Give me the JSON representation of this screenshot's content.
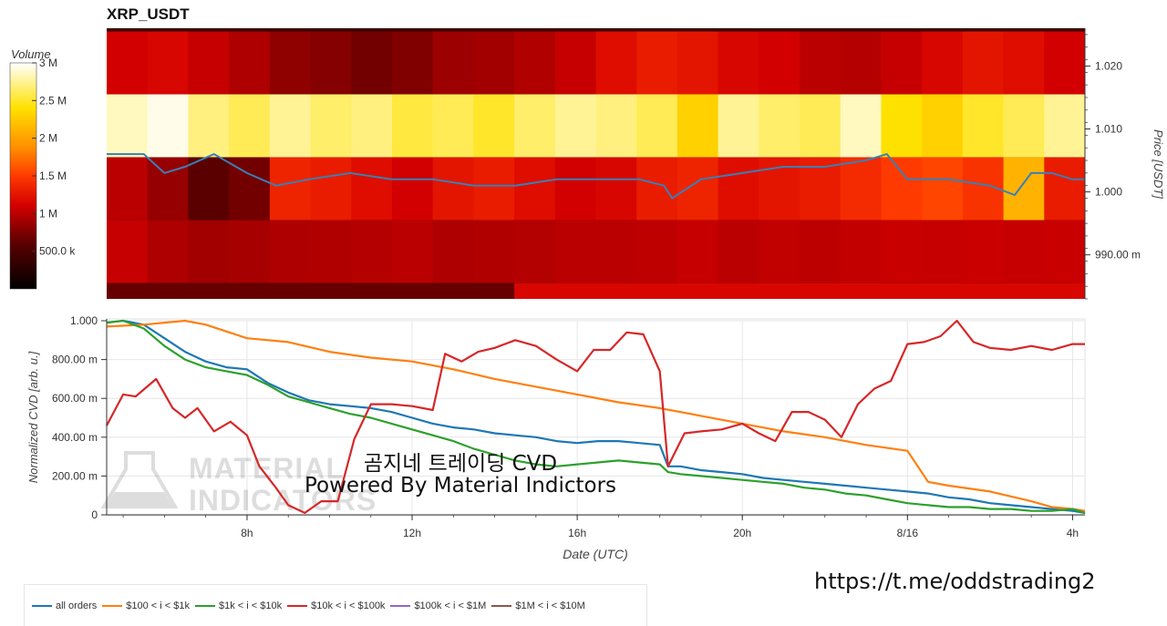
{
  "title": "XRP_USDT",
  "colorbar": {
    "label": "Volume",
    "ticks": [
      "3 M",
      "2.5 M",
      "2 M",
      "1.5 M",
      "1 M",
      "500.0 k"
    ]
  },
  "price_axis": {
    "label": "Price [USDT]",
    "ticks": [
      "1.020",
      "1.010",
      "1.000",
      "990.00 m"
    ]
  },
  "cvd_axis": {
    "label": "Normalized CVD [arb. u.]",
    "ticks": [
      "1.000",
      "800.00 m",
      "600.00 m",
      "400.00 m",
      "200.00 m",
      "0"
    ]
  },
  "x_axis": {
    "label": "Date (UTC)",
    "ticks": [
      "8h",
      "12h",
      "16h",
      "20h",
      "8/16",
      "4h"
    ]
  },
  "watermark": {
    "line1": "MATERIAL",
    "line2": "INDICATORS"
  },
  "overlay": {
    "line1": "곰지네 트레이딩 CVD",
    "line2": "Powered By Material Indictors"
  },
  "telegram_link": "https://t.me/oddstrading2",
  "legend": [
    {
      "label": "all orders",
      "color": "#1f77b4"
    },
    {
      "label": "$100 < i < $1k",
      "color": "#ff7f0e"
    },
    {
      "label": "$1k < i < $10k",
      "color": "#2ca02c"
    },
    {
      "label": "$10k < i < $100k",
      "color": "#d62728"
    },
    {
      "label": "$100k < i < $1M",
      "color": "#9467bd"
    },
    {
      "label": "$1M < i < $10M",
      "color": "#8c564b"
    }
  ],
  "chart_data": [
    {
      "type": "heatmap",
      "title": "XRP_USDT",
      "ylabel": "Price [USDT]",
      "colorbar_label": "Volume",
      "color_range": [
        0,
        3000000
      ],
      "x_range_hours": [
        4.6,
        28.3
      ],
      "ylim": [
        0.983,
        1.026
      ],
      "price_bands": [
        {
          "price": 1.02,
          "volume_profile": [
            1100000,
            1150000,
            1050000,
            950000,
            820000,
            780000,
            700000,
            760000,
            880000,
            900000,
            960000,
            1050000,
            1200000,
            1300000,
            1250000,
            1150000,
            1100000,
            1000000,
            980000,
            1050000,
            1150000,
            1250000,
            1200000,
            1100000
          ]
        },
        {
          "price": 1.01,
          "volume_profile": [
            2850000,
            2950000,
            2700000,
            2600000,
            2750000,
            2650000,
            2700000,
            2550000,
            2600000,
            2500000,
            2650000,
            2750000,
            2700000,
            2600000,
            2300000,
            2750000,
            2650000,
            2600000,
            2850000,
            2400000,
            2300000,
            2500000,
            2600000,
            2750000
          ]
        },
        {
          "price": 1.0,
          "volume_profile": [
            1000000,
            850000,
            600000,
            700000,
            1350000,
            1300000,
            1200000,
            1100000,
            1250000,
            1300000,
            1200000,
            1100000,
            1150000,
            1300000,
            1350000,
            1200000,
            1250000,
            1300000,
            1400000,
            1500000,
            1550000,
            1450000,
            2100000,
            1300000
          ]
        },
        {
          "price": 0.99,
          "volume_profile": [
            1050000,
            950000,
            900000,
            920000,
            950000,
            960000,
            980000,
            1000000,
            950000,
            960000,
            970000,
            1000000,
            1000000,
            1020000,
            1050000,
            1000000,
            1030000,
            1010000,
            1040000,
            1060000,
            1050000,
            1070000,
            1050000,
            1060000
          ]
        },
        {
          "price": 0.985,
          "volume_profile": [
            650000,
            650000,
            650000,
            650000,
            650000,
            650000,
            650000,
            650000,
            650000,
            650000,
            1150000,
            1150000,
            1150000,
            1150000,
            1150000,
            1150000,
            1150000,
            1150000,
            1150000,
            1150000,
            1150000,
            1150000,
            1150000,
            1150000
          ]
        }
      ],
      "price_line": {
        "x_hours": [
          4.6,
          5.5,
          6.0,
          6.5,
          7.2,
          8.0,
          8.7,
          9.5,
          10.5,
          11.5,
          12.5,
          13.5,
          14.5,
          15.5,
          16.5,
          17.5,
          18.1,
          18.3,
          19.0,
          20.0,
          21.0,
          22.0,
          23.0,
          23.5,
          24.0,
          25.0,
          26.0,
          26.6,
          27.0,
          27.5,
          28.0,
          28.3
        ],
        "y": [
          1.006,
          1.006,
          1.003,
          1.004,
          1.006,
          1.003,
          1.001,
          1.002,
          1.003,
          1.002,
          1.002,
          1.001,
          1.001,
          1.002,
          1.002,
          1.002,
          1.001,
          0.999,
          1.002,
          1.003,
          1.004,
          1.004,
          1.005,
          1.006,
          1.002,
          1.002,
          1.001,
          0.9995,
          1.003,
          1.003,
          1.002,
          1.002
        ]
      }
    },
    {
      "type": "line",
      "xlabel": "Date (UTC)",
      "ylabel": "Normalized CVD [arb. u.]",
      "ylim": [
        0,
        1
      ],
      "x_range_hours": [
        4.6,
        28.3
      ],
      "series": [
        {
          "name": "all orders",
          "x": [
            4.6,
            5.0,
            5.5,
            6.0,
            6.5,
            7.0,
            7.5,
            8.0,
            8.5,
            9.0,
            9.5,
            10.0,
            10.5,
            11.0,
            11.5,
            12.0,
            12.5,
            13.0,
            13.5,
            14.0,
            14.5,
            15.0,
            15.5,
            16.0,
            16.5,
            17.0,
            17.5,
            18.0,
            18.2,
            18.5,
            19.0,
            19.5,
            20.0,
            20.5,
            21.0,
            21.5,
            22.0,
            22.5,
            23.0,
            23.5,
            24.0,
            24.5,
            25.0,
            25.5,
            26.0,
            26.5,
            27.0,
            27.5,
            28.0,
            28.3
          ],
          "values": [
            0.99,
            1.0,
            0.98,
            0.91,
            0.84,
            0.79,
            0.76,
            0.75,
            0.68,
            0.63,
            0.59,
            0.57,
            0.56,
            0.55,
            0.53,
            0.5,
            0.47,
            0.45,
            0.44,
            0.42,
            0.41,
            0.4,
            0.38,
            0.37,
            0.38,
            0.38,
            0.37,
            0.36,
            0.25,
            0.25,
            0.23,
            0.22,
            0.21,
            0.19,
            0.18,
            0.17,
            0.16,
            0.15,
            0.14,
            0.13,
            0.12,
            0.11,
            0.09,
            0.08,
            0.06,
            0.05,
            0.04,
            0.03,
            0.02,
            0.01
          ]
        },
        {
          "name": "$100 < i < $1k",
          "x": [
            4.6,
            5.5,
            6.0,
            6.5,
            7.0,
            8.0,
            9.0,
            10.0,
            11.0,
            12.0,
            13.0,
            14.0,
            15.0,
            16.0,
            17.0,
            18.0,
            19.0,
            20.0,
            21.0,
            22.0,
            23.0,
            24.0,
            24.5,
            25.0,
            26.0,
            27.0,
            27.5,
            28.0,
            28.3
          ],
          "values": [
            0.97,
            0.98,
            0.99,
            1.0,
            0.98,
            0.91,
            0.89,
            0.84,
            0.81,
            0.79,
            0.75,
            0.7,
            0.66,
            0.62,
            0.58,
            0.55,
            0.51,
            0.47,
            0.43,
            0.4,
            0.36,
            0.33,
            0.17,
            0.15,
            0.12,
            0.07,
            0.04,
            0.03,
            0.02
          ]
        },
        {
          "name": "$1k < i < $10k",
          "x": [
            4.6,
            5.0,
            5.5,
            6.0,
            6.5,
            7.0,
            7.5,
            8.0,
            8.5,
            9.0,
            9.5,
            10.0,
            10.5,
            11.0,
            11.5,
            12.0,
            12.5,
            13.0,
            13.5,
            14.0,
            14.5,
            15.0,
            15.5,
            16.0,
            16.5,
            17.0,
            17.5,
            18.0,
            18.2,
            18.5,
            19.0,
            19.5,
            20.0,
            20.5,
            21.0,
            21.5,
            22.0,
            22.5,
            23.0,
            23.5,
            24.0,
            24.5,
            25.0,
            25.5,
            26.0,
            26.5,
            27.0,
            27.5,
            28.0,
            28.3
          ],
          "values": [
            0.99,
            1.0,
            0.96,
            0.87,
            0.8,
            0.76,
            0.74,
            0.72,
            0.67,
            0.61,
            0.58,
            0.55,
            0.52,
            0.5,
            0.47,
            0.44,
            0.41,
            0.38,
            0.34,
            0.31,
            0.28,
            0.26,
            0.25,
            0.26,
            0.27,
            0.28,
            0.27,
            0.26,
            0.22,
            0.21,
            0.2,
            0.19,
            0.18,
            0.17,
            0.16,
            0.14,
            0.13,
            0.11,
            0.1,
            0.08,
            0.06,
            0.05,
            0.04,
            0.04,
            0.03,
            0.03,
            0.02,
            0.02,
            0.03,
            0.01
          ]
        },
        {
          "name": "$10k < i < $100k",
          "x": [
            4.6,
            5.0,
            5.3,
            5.8,
            6.2,
            6.5,
            6.8,
            7.2,
            7.6,
            8.0,
            8.3,
            8.7,
            9.0,
            9.4,
            9.8,
            10.2,
            10.6,
            11.0,
            11.5,
            12.0,
            12.5,
            12.8,
            13.2,
            13.6,
            14.0,
            14.5,
            15.0,
            15.5,
            16.0,
            16.4,
            16.8,
            17.2,
            17.6,
            18.0,
            18.2,
            18.6,
            19.0,
            19.5,
            20.0,
            20.4,
            20.8,
            21.2,
            21.6,
            22.0,
            22.4,
            22.8,
            23.2,
            23.6,
            24.0,
            24.4,
            24.8,
            25.2,
            25.6,
            26.0,
            26.5,
            27.0,
            27.5,
            28.0,
            28.3
          ],
          "values": [
            0.46,
            0.62,
            0.61,
            0.7,
            0.55,
            0.5,
            0.55,
            0.43,
            0.48,
            0.41,
            0.25,
            0.14,
            0.05,
            0.01,
            0.07,
            0.07,
            0.39,
            0.57,
            0.57,
            0.56,
            0.54,
            0.83,
            0.79,
            0.84,
            0.86,
            0.9,
            0.87,
            0.8,
            0.74,
            0.85,
            0.85,
            0.94,
            0.93,
            0.74,
            0.25,
            0.42,
            0.43,
            0.44,
            0.47,
            0.42,
            0.38,
            0.53,
            0.53,
            0.49,
            0.4,
            0.57,
            0.65,
            0.69,
            0.88,
            0.89,
            0.92,
            1.0,
            0.89,
            0.86,
            0.85,
            0.87,
            0.85,
            0.88,
            0.88
          ]
        },
        {
          "name": "$100k < i < $1M",
          "x": [],
          "values": []
        },
        {
          "name": "$1M < i < $10M",
          "x": [],
          "values": []
        }
      ]
    }
  ]
}
